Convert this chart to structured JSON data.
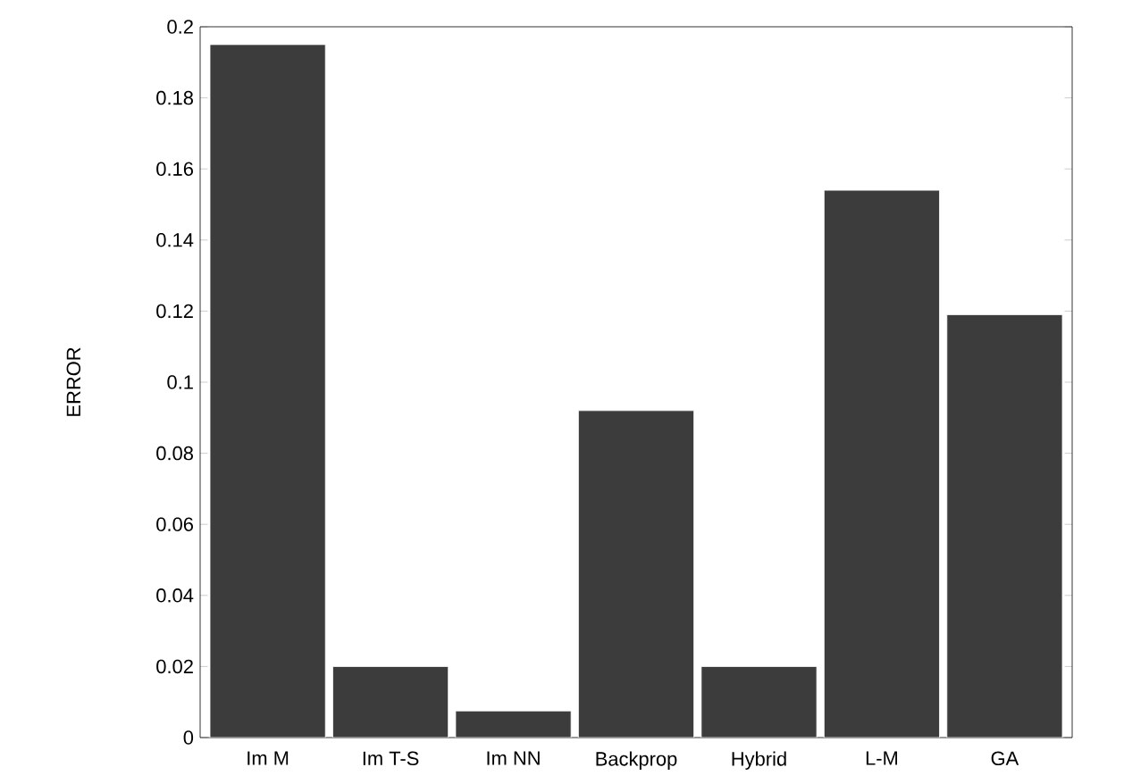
{
  "chart_data": {
    "type": "bar",
    "ylabel": "ERROR",
    "categories": [
      "Im M",
      "Im T-S",
      "Im NN",
      "Backprop",
      "Hybrid",
      "L-M",
      "GA"
    ],
    "values": [
      0.195,
      0.02,
      0.0075,
      0.092,
      0.02,
      0.154,
      0.119
    ],
    "color": "#3c3c3c",
    "ylim": [
      0,
      0.2
    ],
    "yticks": [
      0,
      0.02,
      0.04,
      0.06,
      0.08,
      0.1,
      0.12,
      0.14,
      0.16,
      0.18,
      0.2
    ],
    "grid": false
  }
}
